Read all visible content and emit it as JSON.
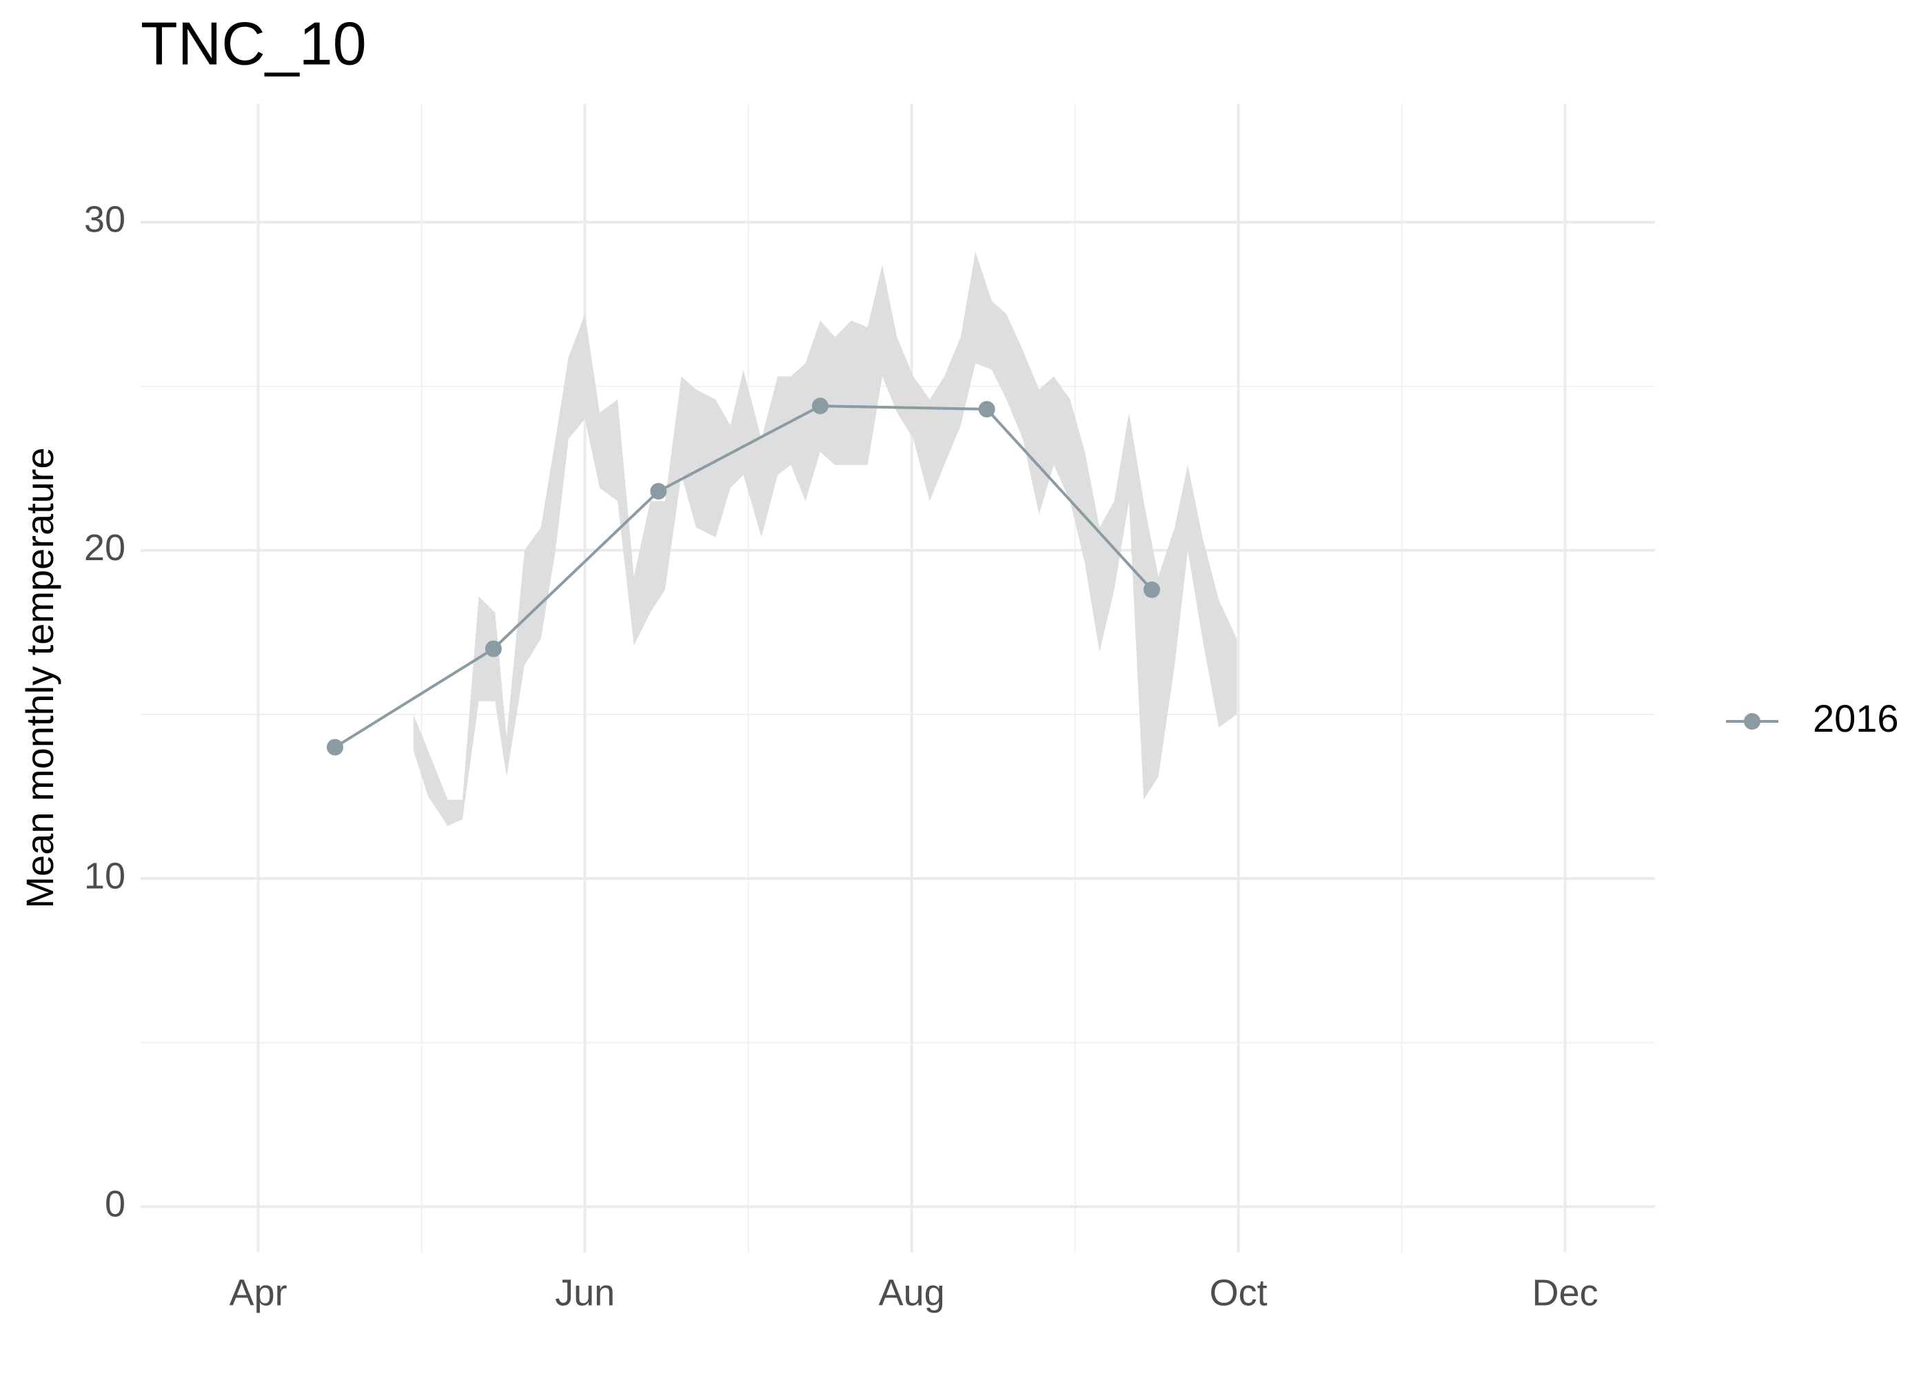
{
  "chart_data": {
    "type": "line",
    "title": "TNC_10",
    "y_label": "Mean monthly temperature",
    "x": [
      4.47,
      5.44,
      6.45,
      7.44,
      8.46,
      9.47
    ],
    "series": [
      {
        "name": "2016",
        "color": "#8a9ba3",
        "values": [
          14.0,
          17.0,
          21.8,
          24.4,
          24.3,
          18.8
        ]
      }
    ],
    "ribbon": {
      "color": "#dedede",
      "x": [
        4.95,
        5.04,
        5.16,
        5.25,
        5.35,
        5.45,
        5.52,
        5.63,
        5.73,
        5.82,
        5.9,
        6.0,
        6.09,
        6.2,
        6.3,
        6.4,
        6.49,
        6.59,
        6.68,
        6.8,
        6.89,
        6.97,
        7.08,
        7.18,
        7.26,
        7.35,
        7.44,
        7.53,
        7.63,
        7.73,
        7.82,
        7.91,
        8.01,
        8.11,
        8.2,
        8.3,
        8.39,
        8.49,
        8.58,
        8.68,
        8.78,
        8.87,
        8.97,
        9.06,
        9.15,
        9.24,
        9.33,
        9.42,
        9.51,
        9.61,
        9.69,
        9.78,
        9.88,
        9.99
      ],
      "ymax": [
        15.0,
        13.9,
        12.4,
        12.4,
        18.6,
        18.1,
        14.3,
        20.0,
        20.7,
        23.4,
        25.9,
        27.2,
        24.2,
        24.6,
        19.2,
        21.5,
        21.5,
        25.3,
        24.9,
        24.6,
        23.8,
        25.5,
        23.4,
        25.3,
        25.3,
        25.7,
        27.0,
        26.5,
        27.0,
        26.8,
        28.7,
        26.5,
        25.3,
        24.6,
        25.3,
        26.5,
        29.1,
        27.6,
        27.2,
        26.1,
        24.9,
        25.3,
        24.6,
        23.0,
        20.7,
        21.5,
        24.2,
        21.5,
        19.2,
        20.7,
        22.6,
        20.4,
        18.5,
        17.3
      ],
      "ymin": [
        13.9,
        12.5,
        11.6,
        11.8,
        15.4,
        15.4,
        13.1,
        16.5,
        17.3,
        20.0,
        23.4,
        24.0,
        21.9,
        21.5,
        17.1,
        18.1,
        18.8,
        22.3,
        20.7,
        20.4,
        21.9,
        22.3,
        20.4,
        22.3,
        22.6,
        21.5,
        23.0,
        22.6,
        22.6,
        22.6,
        25.3,
        24.2,
        23.4,
        21.5,
        22.6,
        23.8,
        25.7,
        25.5,
        24.6,
        23.4,
        21.1,
        22.6,
        21.5,
        19.6,
        16.9,
        18.8,
        21.5,
        12.4,
        13.1,
        16.5,
        20.0,
        17.3,
        14.6,
        15.0
      ]
    },
    "xlim": [
      3.28,
      12.55
    ],
    "xticks": [
      {
        "value": 4,
        "label": "Apr"
      },
      {
        "value": 6,
        "label": "Jun"
      },
      {
        "value": 8,
        "label": "Aug"
      },
      {
        "value": 10,
        "label": "Oct"
      },
      {
        "value": 12,
        "label": "Dec"
      }
    ],
    "ylim": [
      -1.4,
      33.6
    ],
    "yticks": [
      0,
      10,
      20,
      30
    ],
    "grid": true,
    "legend": "right"
  }
}
